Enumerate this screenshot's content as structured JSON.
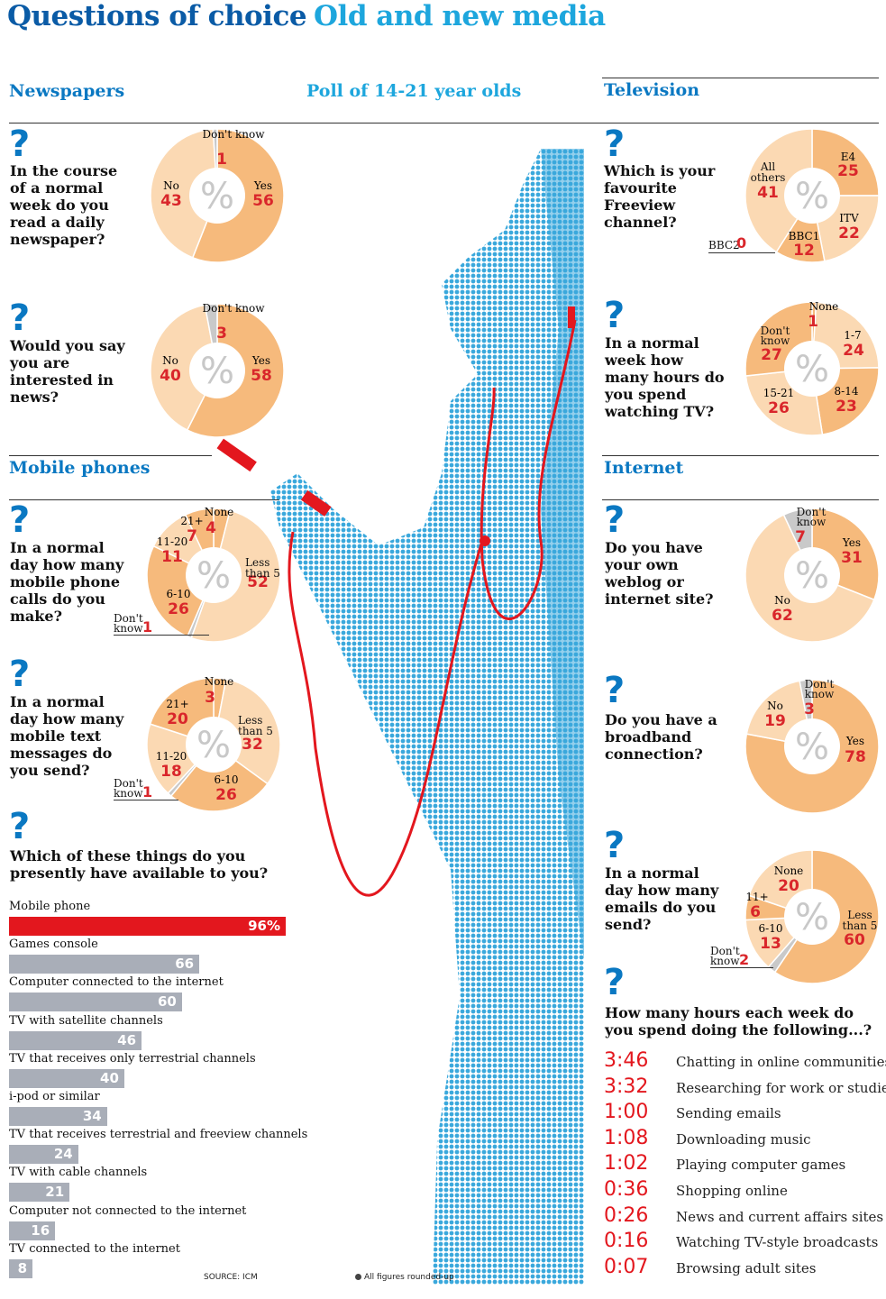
{
  "header": {
    "title": "Questions of choice",
    "subtitle": "Old and new media"
  },
  "poll_label": "Poll of 14-21 year olds",
  "sections": {
    "newspapers": "Newspapers",
    "television": "Television",
    "mobile": "Mobile phones",
    "internet": "Internet"
  },
  "colors": {
    "dark_orange": "#f6ba7c",
    "light_orange": "#fbd9b3",
    "grey": "#c9c9c9",
    "red": "#d9262b",
    "blue": "#0a78c2",
    "photo_blue": "#3aa8dc"
  },
  "chart_data": [
    {
      "type": "pie",
      "id": "daily_newspaper",
      "question": "In the course of a normal week do you read a daily newspaper?",
      "slices": [
        {
          "label": "Yes",
          "value": 56
        },
        {
          "label": "No",
          "value": 43
        },
        {
          "label": "Don't know",
          "value": 1
        }
      ]
    },
    {
      "type": "pie",
      "id": "interested_news",
      "question": "Would you say you are interested in news?",
      "slices": [
        {
          "label": "Yes",
          "value": 58
        },
        {
          "label": "No",
          "value": 40
        },
        {
          "label": "Don't know",
          "value": 3
        }
      ]
    },
    {
      "type": "pie",
      "id": "phone_calls",
      "question": "In a normal day how many mobile phone calls do you make?",
      "slices": [
        {
          "label": "None",
          "value": 4
        },
        {
          "label": "Less than 5",
          "value": 52
        },
        {
          "label": "Don't know",
          "value": 1
        },
        {
          "label": "6-10",
          "value": 26
        },
        {
          "label": "11-20",
          "value": 11
        },
        {
          "label": "21+",
          "value": 7
        }
      ]
    },
    {
      "type": "pie",
      "id": "text_messages",
      "question": "In a normal day how many mobile text messages do you send?",
      "slices": [
        {
          "label": "None",
          "value": 3
        },
        {
          "label": "Less than 5",
          "value": 32
        },
        {
          "label": "6-10",
          "value": 26
        },
        {
          "label": "Don't know",
          "value": 1
        },
        {
          "label": "11-20",
          "value": 18
        },
        {
          "label": "21+",
          "value": 20
        }
      ]
    },
    {
      "type": "pie",
      "id": "freeview_channel",
      "question": "Which is your favourite Freeview channel?",
      "slices": [
        {
          "label": "E4",
          "value": 25
        },
        {
          "label": "ITV",
          "value": 22
        },
        {
          "label": "BBC1",
          "value": 12
        },
        {
          "label": "BBC2",
          "value": 0
        },
        {
          "label": "All others",
          "value": 41
        }
      ]
    },
    {
      "type": "pie",
      "id": "tv_hours",
      "question": "In a normal week how many hours do you spend watching TV?",
      "slices": [
        {
          "label": "None",
          "value": 1
        },
        {
          "label": "1-7",
          "value": 24
        },
        {
          "label": "8-14",
          "value": 23
        },
        {
          "label": "15-21",
          "value": 26
        },
        {
          "label": "Don't know",
          "value": 27
        }
      ]
    },
    {
      "type": "pie",
      "id": "weblog",
      "question": "Do you have your own weblog or internet site?",
      "slices": [
        {
          "label": "Yes",
          "value": 31
        },
        {
          "label": "No",
          "value": 62
        },
        {
          "label": "Don't know",
          "value": 7
        }
      ]
    },
    {
      "type": "pie",
      "id": "broadband",
      "question": "Do you have a broadband connection?",
      "slices": [
        {
          "label": "Yes",
          "value": 78
        },
        {
          "label": "No",
          "value": 19
        },
        {
          "label": "Don't know",
          "value": 3
        }
      ]
    },
    {
      "type": "pie",
      "id": "emails",
      "question": "In a normal day how many emails do you send?",
      "slices": [
        {
          "label": "Less than 5",
          "value": 60
        },
        {
          "label": "Don't know",
          "value": 2
        },
        {
          "label": "6-10",
          "value": 13
        },
        {
          "label": "11+",
          "value": 6
        },
        {
          "label": "None",
          "value": 20
        }
      ]
    },
    {
      "type": "bar",
      "id": "available_things",
      "question": "Which of these things do you presently have available to you?",
      "categories": [
        "Mobile phone",
        "Games console",
        "Computer connected to the internet",
        "TV with satellite channels",
        "TV that receives only terrestrial channels",
        "i-pod or similar",
        "TV that receives terrestrial and freeview channels",
        "TV with cable channels",
        "Computer not connected to the internet",
        "TV connected to the internet"
      ],
      "values": [
        96,
        66,
        60,
        46,
        40,
        34,
        24,
        21,
        16,
        8
      ],
      "value_labels": [
        "96%",
        "66",
        "60",
        "46",
        "40",
        "34",
        "24",
        "21",
        "16",
        "8"
      ]
    },
    {
      "type": "table",
      "id": "hours_week",
      "question": "How many hours each week do you spend doing the following...?",
      "rows": [
        {
          "time": "3:46",
          "activity": "Chatting in online communities"
        },
        {
          "time": "3:32",
          "activity": "Researching for work or studies"
        },
        {
          "time": "1:00",
          "activity": "Sending emails"
        },
        {
          "time": "1:08",
          "activity": "Downloading music"
        },
        {
          "time": "1:02",
          "activity": "Playing computer games"
        },
        {
          "time": "0:36",
          "activity": "Shopping online"
        },
        {
          "time": "0:26",
          "activity": "News and current affairs sites"
        },
        {
          "time": "0:16",
          "activity": "Watching TV-style broadcasts"
        },
        {
          "time": "0:07",
          "activity": "Browsing adult sites"
        }
      ]
    }
  ],
  "qmark": "?",
  "pct_symbol": "%",
  "footer": {
    "source": "SOURCE: ICM",
    "note": "All figures rounded-up"
  }
}
